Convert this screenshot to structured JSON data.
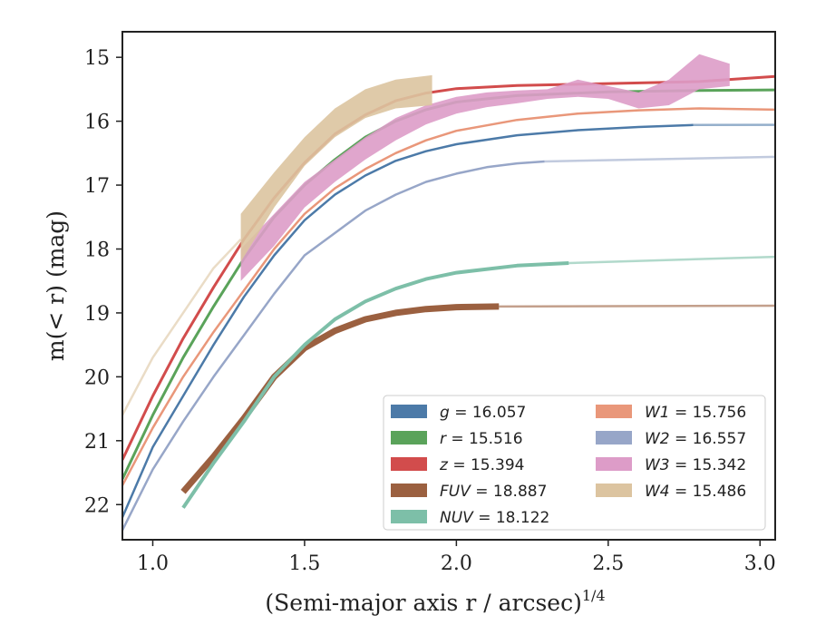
{
  "chart_data": {
    "type": "line",
    "xlabel": "(Semi-major axis r / arcsec)",
    "xlabel_exponent": "1/4",
    "ylabel": "m(< r) (mag)",
    "xlim": [
      0.9,
      3.05
    ],
    "ylim": [
      22.55,
      14.6
    ],
    "y_inverted": true,
    "x_ticks": [
      "1.0",
      "1.5",
      "2.0",
      "2.5",
      "3.0"
    ],
    "y_ticks": [
      "15",
      "16",
      "17",
      "18",
      "19",
      "20",
      "21",
      "22"
    ],
    "grid": false,
    "legend_position": "lower-right",
    "series": [
      {
        "name": "g = 16.057",
        "label_var": "g",
        "label_val": "= 16.057",
        "color": "#4c7aa8",
        "style": "line",
        "width": 2.5,
        "x": [
          0.9,
          1.0,
          1.1,
          1.2,
          1.3,
          1.4,
          1.5,
          1.6,
          1.7,
          1.8,
          1.9,
          2.0,
          2.2,
          2.4,
          2.6,
          2.78
        ],
        "y": [
          22.2,
          21.1,
          20.3,
          19.5,
          18.75,
          18.1,
          17.55,
          17.15,
          16.85,
          16.62,
          16.47,
          16.36,
          16.22,
          16.14,
          16.09,
          16.06
        ],
        "extension": {
          "x": [
            2.78,
            3.05
          ],
          "y": [
            16.06,
            16.057
          ]
        }
      },
      {
        "name": "r = 15.516",
        "label_var": "r",
        "label_val": "= 15.516",
        "color": "#5aa35a",
        "style": "line",
        "width": 3,
        "x": [
          0.9,
          1.0,
          1.1,
          1.2,
          1.3,
          1.4,
          1.5,
          1.6,
          1.7,
          1.8,
          1.9,
          2.0,
          2.2,
          2.5,
          2.8,
          3.05
        ],
        "y": [
          21.6,
          20.6,
          19.7,
          18.9,
          18.15,
          17.5,
          17.0,
          16.6,
          16.25,
          16.0,
          15.82,
          15.7,
          15.6,
          15.54,
          15.52,
          15.51
        ]
      },
      {
        "name": "z = 15.394",
        "label_var": "z",
        "label_val": "= 15.394",
        "color": "#d24c4c",
        "style": "line",
        "width": 3,
        "x": [
          0.9,
          1.0,
          1.1,
          1.2,
          1.3,
          1.4,
          1.5,
          1.6,
          1.7,
          1.8,
          1.9,
          2.0,
          2.2,
          2.5,
          2.8,
          3.05
        ],
        "y": [
          21.3,
          20.3,
          19.4,
          18.6,
          17.85,
          17.2,
          16.65,
          16.2,
          15.9,
          15.68,
          15.56,
          15.49,
          15.44,
          15.41,
          15.38,
          15.3
        ]
      },
      {
        "name": "FUV = 18.887",
        "label_var": "FUV",
        "label_val": "= 18.887",
        "color": "#9b6040",
        "style": "line",
        "width": 7,
        "x": [
          1.1,
          1.2,
          1.3,
          1.4,
          1.5,
          1.6,
          1.7,
          1.8,
          1.9,
          2.0,
          2.14
        ],
        "y": [
          21.8,
          21.25,
          20.65,
          20.0,
          19.55,
          19.28,
          19.1,
          19.0,
          18.94,
          18.91,
          18.9
        ],
        "extension": {
          "x": [
            2.14,
            3.05
          ],
          "y": [
            18.9,
            18.887
          ]
        }
      },
      {
        "name": "NUV = 18.122",
        "label_var": "NUV",
        "label_val": "= 18.122",
        "color": "#7dbfa8",
        "style": "line",
        "width": 4,
        "x": [
          1.1,
          1.2,
          1.3,
          1.4,
          1.5,
          1.6,
          1.7,
          1.8,
          1.9,
          2.0,
          2.2,
          2.37
        ],
        "y": [
          22.05,
          21.35,
          20.7,
          20.0,
          19.5,
          19.1,
          18.82,
          18.62,
          18.47,
          18.37,
          18.26,
          18.22
        ],
        "extension": {
          "x": [
            2.37,
            3.05
          ],
          "y": [
            18.22,
            18.122
          ]
        }
      },
      {
        "name": "W1 = 15.756",
        "label_var": "W1",
        "label_val": "= 15.756",
        "color": "#e9977a",
        "style": "line",
        "width": 2.5,
        "x": [
          0.9,
          1.0,
          1.1,
          1.2,
          1.3,
          1.4,
          1.5,
          1.6,
          1.7,
          1.8,
          1.9,
          2.0,
          2.2,
          2.4,
          2.6,
          2.8,
          3.05
        ],
        "y": [
          21.7,
          20.8,
          20.0,
          19.3,
          18.65,
          18.0,
          17.45,
          17.05,
          16.75,
          16.5,
          16.3,
          16.15,
          15.98,
          15.88,
          15.83,
          15.8,
          15.82
        ]
      },
      {
        "name": "W2 = 16.557",
        "label_var": "W2",
        "label_val": "= 16.557",
        "color": "#97a6c8",
        "style": "line",
        "width": 2.5,
        "x": [
          0.9,
          1.0,
          1.1,
          1.2,
          1.3,
          1.4,
          1.5,
          1.6,
          1.7,
          1.8,
          1.9,
          2.0,
          2.1,
          2.2,
          2.29
        ],
        "y": [
          22.4,
          21.45,
          20.7,
          20.0,
          19.35,
          18.7,
          18.1,
          17.75,
          17.4,
          17.15,
          16.95,
          16.82,
          16.72,
          16.66,
          16.63
        ],
        "extension": {
          "x": [
            2.29,
            3.05
          ],
          "y": [
            16.63,
            16.557
          ]
        }
      },
      {
        "name": "W3 = 15.342",
        "label_var": "W3",
        "label_val": "= 15.342",
        "color": "#dd9cc8",
        "style": "band",
        "width": 2,
        "x": [
          1.29,
          1.4,
          1.5,
          1.6,
          1.7,
          1.8,
          1.9,
          2.0,
          2.1,
          2.2,
          2.3,
          2.4,
          2.5,
          2.6,
          2.7,
          2.8,
          2.9
        ],
        "y_upper": [
          18.0,
          17.45,
          16.95,
          16.6,
          16.25,
          15.95,
          15.75,
          15.62,
          15.55,
          15.52,
          15.5,
          15.35,
          15.45,
          15.55,
          15.35,
          14.95,
          15.1
        ],
        "y_lower": [
          18.5,
          17.95,
          17.35,
          16.95,
          16.6,
          16.3,
          16.05,
          15.88,
          15.78,
          15.72,
          15.65,
          15.62,
          15.65,
          15.8,
          15.75,
          15.5,
          15.45
        ]
      },
      {
        "name": "W4 = 15.486",
        "label_var": "W4",
        "label_val": "= 15.486",
        "color": "#dcc4a0",
        "style": "band",
        "width": 2,
        "x": [
          1.29,
          1.4,
          1.5,
          1.6,
          1.7,
          1.8,
          1.92
        ],
        "y_upper": [
          17.45,
          16.8,
          16.25,
          15.8,
          15.5,
          15.35,
          15.28
        ],
        "y_lower": [
          18.2,
          17.35,
          16.7,
          16.25,
          15.95,
          15.8,
          15.75
        ],
        "extension": {
          "x": [
            0.9,
            1.0,
            1.1,
            1.2,
            1.29
          ],
          "y": [
            20.6,
            19.7,
            19.0,
            18.3,
            17.85
          ]
        }
      }
    ]
  }
}
